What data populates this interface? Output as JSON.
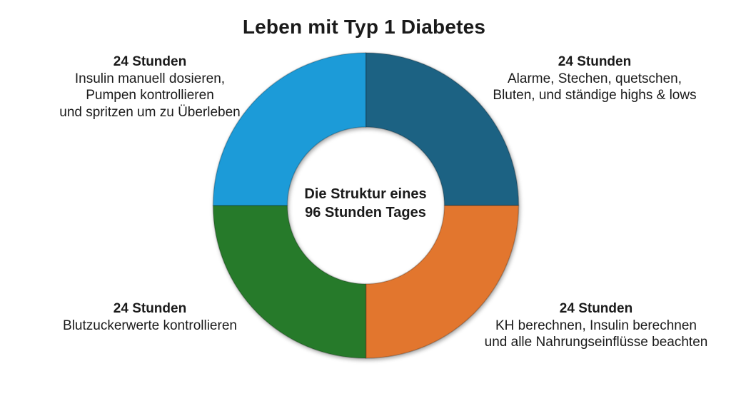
{
  "chart_data": {
    "type": "pie",
    "subtype": "donut",
    "title": "Leben mit Typ 1 Diabetes",
    "center_label_lines": [
      "Die Struktur eines",
      "96 Stunden Tages"
    ],
    "total": 96,
    "units": "Stunden",
    "donut_hole_ratio": 0.514,
    "legend_position": "none",
    "start_angle_deg": 0,
    "direction": "clockwise",
    "slices": [
      {
        "value": 24,
        "color": "#1F6283",
        "position": "top-right",
        "label": "24 Stunden"
      },
      {
        "value": 24,
        "color": "#E2762F",
        "position": "bottom-right",
        "label": "24 Stunden"
      },
      {
        "value": 24,
        "color": "#287A2C",
        "position": "bottom-left",
        "label": "24 Stunden"
      },
      {
        "value": 24,
        "color": "#1B9BD8",
        "position": "top-left",
        "label": "24 Stunden"
      }
    ],
    "annotations": {
      "top_left": {
        "heading": "24 Stunden",
        "lines": [
          "Insulin manuell dosieren,",
          "Pumpen kontrollieren",
          "und spritzen um zu Überleben"
        ]
      },
      "top_right": {
        "heading": "24 Stunden",
        "lines": [
          "Alarme, Stechen, quetschen,",
          "Bluten, und ständige highs & lows"
        ]
      },
      "bottom_left": {
        "heading": "24 Stunden",
        "lines": [
          "Blutzuckerwerte kontrollieren"
        ]
      },
      "bottom_right": {
        "heading": "24 Stunden",
        "lines": [
          "KH berechnen, Insulin berechnen",
          "und alle Nahrungseinflüsse beachten"
        ]
      }
    },
    "text_color": "#1a1a1a",
    "background_color": "#ffffff"
  }
}
